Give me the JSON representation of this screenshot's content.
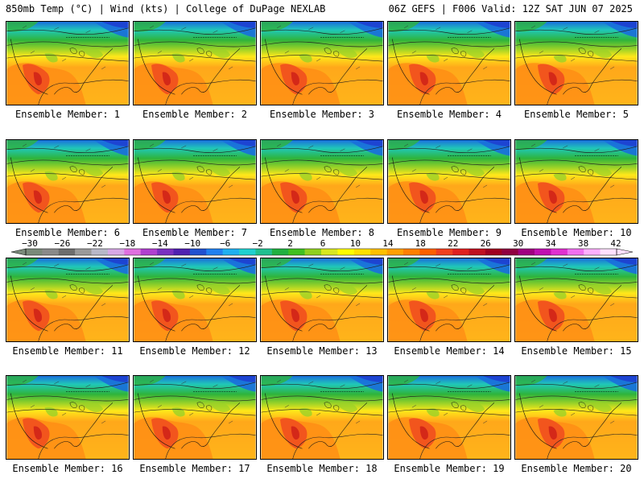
{
  "header": {
    "left_title": "850mb Temp (°C) | Wind (kts) | College of DuPage NEXLAB",
    "right_title": "06Z GEFS | F006 Valid: 12Z SAT JUN 07 2025"
  },
  "member_label_prefix": "Ensemble Member: ",
  "members": [
    1,
    2,
    3,
    4,
    5,
    6,
    7,
    8,
    9,
    10,
    11,
    12,
    13,
    14,
    15,
    16,
    17,
    18,
    19,
    20
  ],
  "colorbar": {
    "ticks": [
      -30,
      -26,
      -22,
      -18,
      -14,
      -10,
      -6,
      -2,
      2,
      6,
      10,
      14,
      18,
      22,
      26,
      30,
      34,
      38,
      42
    ],
    "colors": [
      "#7a8a7a",
      "#8a8a8a",
      "#6e6e6e",
      "#9a9a9a",
      "#b8b8c8",
      "#d7a8e6",
      "#e070e0",
      "#b040d0",
      "#7a30c0",
      "#5020b0",
      "#2050d0",
      "#2080f0",
      "#20b0f0",
      "#20d0d0",
      "#20c090",
      "#20b040",
      "#40c020",
      "#90d020",
      "#d8e820",
      "#ffff00",
      "#ffe000",
      "#ffc000",
      "#ffa000",
      "#ff8000",
      "#ff6000",
      "#f04020",
      "#e02020",
      "#c01020",
      "#a00020",
      "#900040",
      "#a00080",
      "#c010b0",
      "#e030d0",
      "#f070f0",
      "#ffb0ff",
      "#ffe0ff"
    ]
  },
  "palette": {
    "cold_top": "#1a6edc",
    "teal": "#20c8b8",
    "green": "#2eb43c",
    "lime": "#9ad228",
    "yellow": "#ffe81a",
    "orange": "#ffa81a",
    "orange_dark": "#ff8a14",
    "red": "#f04a1e",
    "red_dark": "#d42818",
    "ocean_warm": "#ffb41a"
  }
}
